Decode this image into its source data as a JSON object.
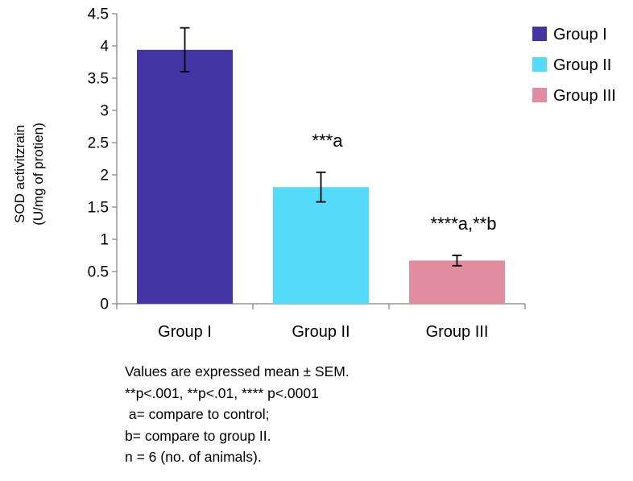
{
  "chart_data": {
    "type": "bar",
    "title": "",
    "xlabel": "",
    "ylabel_lines": [
      "SOD activitzrain",
      "(U/mg of protien)"
    ],
    "categories": [
      "Group I",
      "Group II",
      "Group III"
    ],
    "values": [
      3.94,
      1.81,
      0.67
    ],
    "errors": [
      0.34,
      0.23,
      0.08
    ],
    "colors": [
      "#4434a4",
      "#55daf9",
      "#e08e9f"
    ],
    "ylim": [
      0,
      4.5
    ],
    "yticks": [
      0,
      0.5,
      1,
      1.5,
      2,
      2.5,
      3,
      3.5,
      4,
      4.5
    ],
    "ytick_labels": [
      "0",
      "0.5",
      "1",
      "1.5",
      "2",
      "2.5",
      "3",
      "3.5",
      "4",
      "4.5"
    ],
    "annotations": [
      "",
      "***a",
      "****a,**b"
    ],
    "legend": {
      "position": "top-right",
      "entries": [
        "Group I",
        "Group II",
        "Group III"
      ]
    }
  },
  "notes": [
    "Values are expressed mean ± SEM.",
    "**p<.001, **p<.01, **** p<.0001",
    " a= compare to control;",
    "b= compare to group II.",
    "n = 6 (no. of animals)."
  ]
}
